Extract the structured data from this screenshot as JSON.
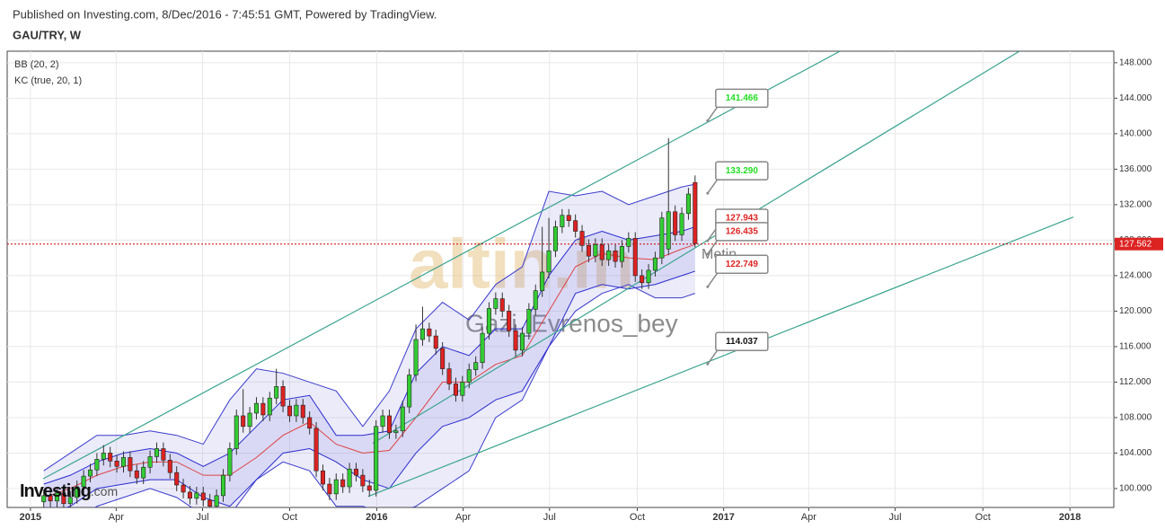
{
  "chart_data": {
    "type": "candlestick",
    "subtitle": "Published on Investing.com, 8/Dec/2016 - 7:45:51 GMT, Powered by TradingView.",
    "title": "GAU/TRY, W",
    "indicators": [
      "BB (20, 2)",
      "KC (true, 20, 1)"
    ],
    "xlim": [
      -3.5,
      163
    ],
    "ylim": [
      97.87,
      149.3
    ],
    "xticks": [
      {
        "value": 0,
        "label": "2015"
      },
      {
        "value": 12.9,
        "label": "Apr"
      },
      {
        "value": 25.9,
        "label": "Jul"
      },
      {
        "value": 39,
        "label": "Oct"
      },
      {
        "value": 52.1,
        "label": "2016"
      },
      {
        "value": 65.1,
        "label": "Apr"
      },
      {
        "value": 78.1,
        "label": "Jul"
      },
      {
        "value": 91.3,
        "label": "Oct"
      },
      {
        "value": 104.3,
        "label": "2017"
      },
      {
        "value": 117.1,
        "label": "Apr"
      },
      {
        "value": 130.1,
        "label": "Jul"
      },
      {
        "value": 143.3,
        "label": "Oct"
      },
      {
        "value": 156.4,
        "label": "2018"
      }
    ],
    "yticks": [
      {
        "value": 100,
        "label": "100.000"
      },
      {
        "value": 104,
        "label": "104.000"
      },
      {
        "value": 108,
        "label": "108.000"
      },
      {
        "value": 112,
        "label": "112.000"
      },
      {
        "value": 116,
        "label": "116.000"
      },
      {
        "value": 120,
        "label": "120.000"
      },
      {
        "value": 124,
        "label": "124.000"
      },
      {
        "value": 128,
        "label": "128.000"
      },
      {
        "value": 132,
        "label": "132.000"
      },
      {
        "value": 136,
        "label": "136.000"
      },
      {
        "value": 140,
        "label": "140.000"
      },
      {
        "value": 144,
        "label": "144.000"
      },
      {
        "value": 148,
        "label": "148.000"
      }
    ],
    "grid": true,
    "up_color": "#33cc33",
    "down_color": "#dd2222",
    "x": [
      2,
      3,
      4,
      5,
      6,
      7,
      8,
      9,
      10,
      11,
      12,
      13,
      14,
      15,
      16,
      17,
      18,
      19,
      20,
      21,
      22,
      23,
      24,
      25,
      26,
      27,
      28,
      29,
      30,
      31,
      32,
      33,
      34,
      35,
      36,
      37,
      38,
      39,
      40,
      41,
      42,
      43,
      44,
      45,
      46,
      47,
      48,
      49,
      50,
      51,
      52,
      53,
      54,
      55,
      56,
      57,
      58,
      59,
      60,
      61,
      62,
      63,
      64,
      65,
      66,
      67,
      68,
      69,
      70,
      71,
      72,
      73,
      74,
      75,
      76,
      77,
      78,
      79,
      80,
      81,
      82,
      83,
      84,
      85,
      86,
      87,
      88,
      89,
      90,
      91,
      92,
      93,
      94,
      95,
      96,
      97,
      98,
      99,
      100
    ],
    "open": [
      98.5,
      99.2,
      98.6,
      99.5,
      98.3,
      99.0,
      100.2,
      101.4,
      102.1,
      103.3,
      104.0,
      103.1,
      102.5,
      103.5,
      102.0,
      101.2,
      102.4,
      103.6,
      104.5,
      103.2,
      101.8,
      100.4,
      99.6,
      98.9,
      99.5,
      98.7,
      98.0,
      99.2,
      101.5,
      104.5,
      108.2,
      107.0,
      108.5,
      109.6,
      108.3,
      110.2,
      111.5,
      109.3,
      108.2,
      109.4,
      108.0,
      106.8,
      102.0,
      100.5,
      99.4,
      101.0,
      100.2,
      102.2,
      101.5,
      100.3,
      99.8,
      107.0,
      108.2,
      106.3,
      106.5,
      109.2,
      112.8,
      116.8,
      118.0,
      117.2,
      115.8,
      113.5,
      111.8,
      110.5,
      112.0,
      113.4,
      114.2,
      117.5,
      120.3,
      121.4,
      120.0,
      117.8,
      115.6,
      117.5,
      120.2,
      122.3,
      124.4,
      126.8,
      129.5,
      130.8,
      130.2,
      129.0,
      127.4,
      126.2,
      127.5,
      125.8,
      126.8,
      125.6,
      127.3,
      128.2,
      124.0,
      123.2,
      124.6,
      126.0,
      127.0,
      131.2,
      128.6,
      131.0,
      134.5
    ],
    "high": [
      99.9,
      99.9,
      100.2,
      100.2,
      99.7,
      100.9,
      102.1,
      102.8,
      104.0,
      104.9,
      104.7,
      103.8,
      104.2,
      104.2,
      102.7,
      103.1,
      104.3,
      105.2,
      105.2,
      103.9,
      102.5,
      101.1,
      100.3,
      100.2,
      100.2,
      99.4,
      99.9,
      102.2,
      105.2,
      108.9,
      111.2,
      109.2,
      110.3,
      110.3,
      110.9,
      113.5,
      112.2,
      110.0,
      110.1,
      110.1,
      108.7,
      107.5,
      102.7,
      101.2,
      101.7,
      101.7,
      102.9,
      102.9,
      102.2,
      101.0,
      107.7,
      108.9,
      108.9,
      107.2,
      109.9,
      113.5,
      118.5,
      120.5,
      118.7,
      117.9,
      116.5,
      114.2,
      112.5,
      112.7,
      114.1,
      114.9,
      118.2,
      121.0,
      122.1,
      122.1,
      120.7,
      118.5,
      118.2,
      120.9,
      123.0,
      129.5,
      130.5,
      130.2,
      131.5,
      131.5,
      130.9,
      129.7,
      128.1,
      128.2,
      128.2,
      127.5,
      127.5,
      128.0,
      128.9,
      128.9,
      124.7,
      125.3,
      126.7,
      131.2,
      139.5,
      131.9,
      131.7,
      133.9,
      135.3
    ],
    "low": [
      97.8,
      97.9,
      97.9,
      97.6,
      97.6,
      98.3,
      99.5,
      100.7,
      101.4,
      102.6,
      102.4,
      101.8,
      101.8,
      101.3,
      100.5,
      100.5,
      101.7,
      102.9,
      102.5,
      101.1,
      99.7,
      98.9,
      98.2,
      98.2,
      98.0,
      97.3,
      97.3,
      98.5,
      100.8,
      103.8,
      106.3,
      106.3,
      107.8,
      107.6,
      107.6,
      109.5,
      108.6,
      107.5,
      107.5,
      107.3,
      106.1,
      101.3,
      99.8,
      98.7,
      98.7,
      99.5,
      99.5,
      100.8,
      99.6,
      99.1,
      99.1,
      106.3,
      105.6,
      105.6,
      105.8,
      108.5,
      112.1,
      116.1,
      116.5,
      115.1,
      112.8,
      111.1,
      109.8,
      109.8,
      111.3,
      112.7,
      113.5,
      116.8,
      119.6,
      119.3,
      117.1,
      114.9,
      114.9,
      116.8,
      119.5,
      121.6,
      123.7,
      126.1,
      128.8,
      129.5,
      128.3,
      126.7,
      125.5,
      125.5,
      125.1,
      125.1,
      124.9,
      124.9,
      126.6,
      123.3,
      122.5,
      122.5,
      123.9,
      125.3,
      126.3,
      127.9,
      127.9,
      130.3,
      127.2
    ],
    "close": [
      99.2,
      98.6,
      99.5,
      98.3,
      99.0,
      100.2,
      101.4,
      102.1,
      103.3,
      104.0,
      103.1,
      102.5,
      103.5,
      102.0,
      101.2,
      102.4,
      103.6,
      104.5,
      103.2,
      101.8,
      100.4,
      99.6,
      98.9,
      99.5,
      98.7,
      98.0,
      99.2,
      101.5,
      104.5,
      108.2,
      107.0,
      108.5,
      109.6,
      108.3,
      110.2,
      111.5,
      109.3,
      108.2,
      109.4,
      108.0,
      106.8,
      102.0,
      100.5,
      99.4,
      101.0,
      100.2,
      102.2,
      101.5,
      100.3,
      99.8,
      107.0,
      108.2,
      106.3,
      106.5,
      109.2,
      112.8,
      116.8,
      118.0,
      117.2,
      115.8,
      113.5,
      111.8,
      110.5,
      112.0,
      113.4,
      114.2,
      117.5,
      120.3,
      121.4,
      120.0,
      117.8,
      115.6,
      117.5,
      120.2,
      122.3,
      124.4,
      126.8,
      129.5,
      130.8,
      130.2,
      129.0,
      127.4,
      126.2,
      127.5,
      125.8,
      126.8,
      125.6,
      127.3,
      128.2,
      124.0,
      123.2,
      124.6,
      126.0,
      130.5,
      131.2,
      128.6,
      131.0,
      133.2,
      127.6
    ],
    "bands": {
      "x": [
        2,
        6,
        10,
        14,
        18,
        22,
        26,
        30,
        34,
        38,
        42,
        46,
        50,
        54,
        58,
        62,
        66,
        70,
        74,
        78,
        82,
        86,
        90,
        94,
        98,
        100
      ],
      "bb_upper": [
        102,
        104,
        106,
        106,
        106.5,
        106,
        105,
        110,
        113.5,
        113,
        112,
        111,
        107,
        111,
        118,
        121,
        119,
        123,
        125,
        133.5,
        133,
        133.5,
        132,
        133,
        134,
        134.3
      ],
      "bb_lower": [
        96,
        96,
        98,
        99,
        100,
        99,
        97,
        97,
        101,
        103,
        102,
        98,
        98,
        97,
        98,
        100,
        102,
        108,
        110,
        116,
        120,
        122,
        123,
        121.5,
        121.5,
        122
      ],
      "basis": [
        99,
        100,
        101.5,
        102.5,
        103,
        103,
        101.5,
        101.5,
        103.5,
        106,
        107.5,
        105,
        104,
        104.3,
        108,
        112,
        112,
        114,
        115,
        120,
        125,
        126.5,
        126,
        125.8,
        127,
        127.5
      ],
      "kc_upper": [
        100.5,
        101.5,
        103,
        104,
        104.5,
        104,
        102.5,
        104,
        107,
        110,
        110.5,
        106,
        106,
        106.5,
        113,
        116,
        115,
        118,
        118,
        124,
        128,
        129,
        128,
        128.5,
        129,
        129.5
      ],
      "kc_lower": [
        97,
        98,
        100,
        100.5,
        101,
        101,
        99,
        98,
        101,
        104,
        104.5,
        103,
        101,
        100,
        104,
        107,
        108,
        110,
        111,
        116,
        122,
        123,
        122.5,
        123,
        124,
        124.5
      ]
    },
    "trend_lines": [
      {
        "x": [
          1.9,
          121.8
        ],
        "values": [
          101.1,
          149.3
        ]
      },
      {
        "x": [
          51.5,
          148.8
        ],
        "values": [
          105.1,
          149.3
        ]
      },
      {
        "x": [
          50.8,
          156.9
        ],
        "values": [
          99.1,
          130.6
        ]
      }
    ],
    "trend_color": "#3aa38f",
    "last_price": 127.562,
    "price_levels": [
      {
        "value": 141.466,
        "label": "141.466",
        "color": "#22dd22"
      },
      {
        "value": 133.29,
        "label": "133.290",
        "color": "#22dd22"
      },
      {
        "value": 127.943,
        "label": "127.943",
        "color": "#dd2222"
      },
      {
        "value": 126.435,
        "label": "126.435",
        "color": "#dd2222"
      },
      {
        "value": 122.749,
        "label": "122.749",
        "color": "#dd2222"
      },
      {
        "value": 114.037,
        "label": "114.037",
        "color": "#111111"
      }
    ],
    "watermarks": [
      "altin.in",
      "Gazi_Evrenos_bey",
      "Metin"
    ],
    "logo": [
      "Investing",
      ".com"
    ]
  }
}
